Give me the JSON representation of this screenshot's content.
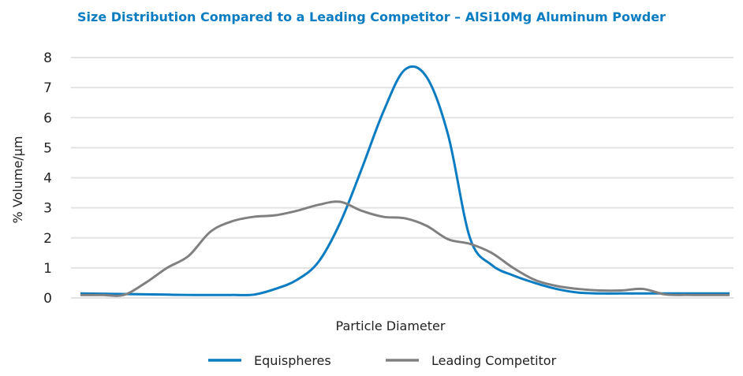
{
  "chart_data": {
    "type": "line",
    "title": "Size Distribution Compared to a Leading Competitor – AlSi10Mg Aluminum Powder",
    "xlabel": "Particle Diameter",
    "ylabel": "% Volume/µm",
    "ylim": [
      0,
      8
    ],
    "yticks": [
      0,
      1,
      2,
      3,
      4,
      5,
      6,
      7,
      8
    ],
    "grid": true,
    "legend": "bottom",
    "x": [
      0,
      1,
      2,
      3,
      4,
      5,
      6,
      7,
      8,
      9,
      10,
      11,
      12,
      13,
      14,
      15,
      16,
      17,
      18,
      19,
      20,
      21,
      22,
      23,
      24,
      25,
      26,
      27,
      28,
      29,
      30
    ],
    "series": [
      {
        "name": "Equispheres",
        "color": "#0a7cc1",
        "values": [
          0.15,
          0.14,
          0.13,
          0.12,
          0.11,
          0.1,
          0.1,
          0.1,
          0.11,
          0.3,
          0.6,
          1.2,
          2.5,
          4.3,
          6.2,
          7.6,
          7.35,
          5.4,
          2.0,
          1.1,
          0.75,
          0.5,
          0.3,
          0.18,
          0.15,
          0.15,
          0.15,
          0.15,
          0.15,
          0.15,
          0.15
        ]
      },
      {
        "name": "Leading Competitor",
        "color": "#808080",
        "values": [
          0.1,
          0.1,
          0.1,
          0.5,
          1.0,
          1.4,
          2.2,
          2.55,
          2.7,
          2.75,
          2.9,
          3.1,
          3.2,
          2.9,
          2.7,
          2.65,
          2.4,
          1.95,
          1.8,
          1.5,
          1.0,
          0.6,
          0.4,
          0.3,
          0.25,
          0.25,
          0.3,
          0.12,
          0.1,
          0.1,
          0.1
        ]
      }
    ]
  }
}
